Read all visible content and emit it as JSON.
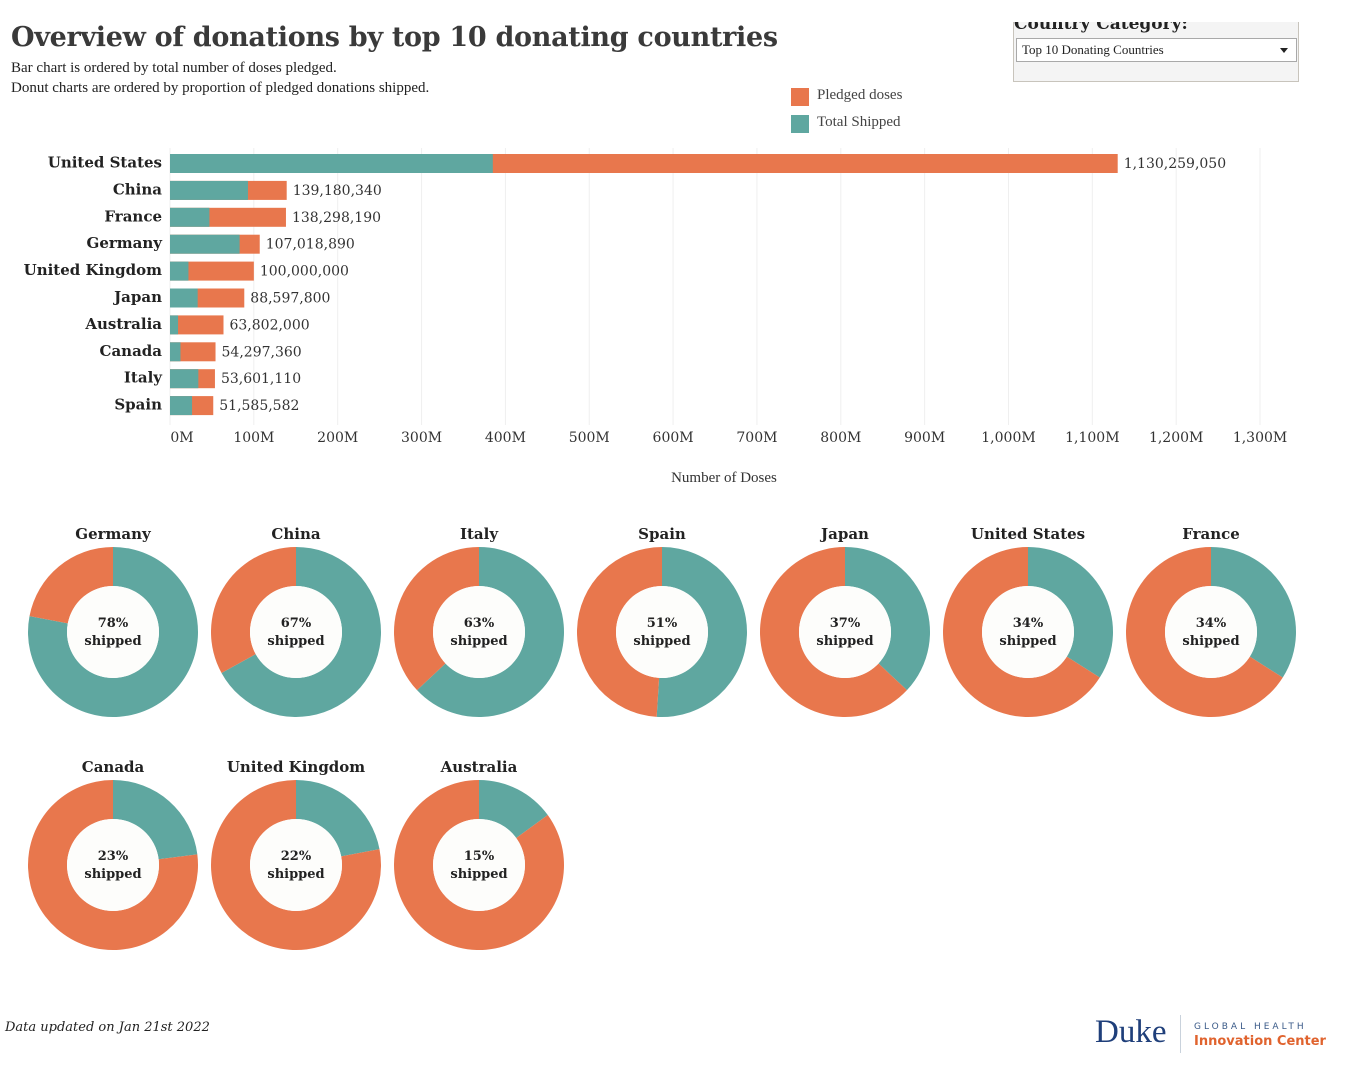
{
  "header": {
    "title": "Overview of donations by top 10 donating countries",
    "subtitle_1": "Bar chart is ordered by total number of doses pledged.",
    "subtitle_2": "Donut charts are ordered by proportion of pledged donations shipped."
  },
  "filter": {
    "label": "Country Category:",
    "selected": "Top 10 Donating Countries"
  },
  "colors": {
    "pledged": "#e8774d",
    "shipped": "#5fa7a0",
    "donut_center": "#fdfdfb",
    "gridline": "#efefef"
  },
  "legend": [
    {
      "label": "Pledged doses",
      "color": "#e8774d"
    },
    {
      "label": "Total Shipped",
      "color": "#5fa7a0"
    }
  ],
  "chart_data": [
    {
      "type": "bar",
      "orientation": "horizontal",
      "stacked": "overlay",
      "title": "",
      "xlabel": "Number of Doses",
      "ylabel": "",
      "xlim": [
        0,
        1300000000
      ],
      "x_ticks": [
        {
          "value": 0,
          "label": "0M"
        },
        {
          "value": 100000000,
          "label": "100M"
        },
        {
          "value": 200000000,
          "label": "200M"
        },
        {
          "value": 300000000,
          "label": "300M"
        },
        {
          "value": 400000000,
          "label": "400M"
        },
        {
          "value": 500000000,
          "label": "500M"
        },
        {
          "value": 600000000,
          "label": "600M"
        },
        {
          "value": 700000000,
          "label": "700M"
        },
        {
          "value": 800000000,
          "label": "800M"
        },
        {
          "value": 900000000,
          "label": "900M"
        },
        {
          "value": 1000000000,
          "label": "1,000M"
        },
        {
          "value": 1100000000,
          "label": "1,100M"
        },
        {
          "value": 1200000000,
          "label": "1,200M"
        },
        {
          "value": 1300000000,
          "label": "1,300M"
        }
      ],
      "grid": true,
      "legend_position": "top-right",
      "categories": [
        "United States",
        "China",
        "France",
        "Germany",
        "United Kingdom",
        "Japan",
        "Australia",
        "Canada",
        "Italy",
        "Spain"
      ],
      "series": [
        {
          "name": "Pledged doses",
          "values": [
            1130259050,
            139180340,
            138298190,
            107018890,
            100000000,
            88597800,
            63802000,
            54297360,
            53601110,
            51585582
          ]
        },
        {
          "name": "Total Shipped",
          "values": [
            385000000,
            93000000,
            47000000,
            83000000,
            22000000,
            33000000,
            9600000,
            12500000,
            33800000,
            26300000
          ]
        }
      ],
      "data_labels": [
        "1,130,259,050",
        "139,180,340",
        "138,298,190",
        "107,018,890",
        "100,000,000",
        "88,597,800",
        "63,802,000",
        "54,297,360",
        "53,601,110",
        "51,585,582"
      ]
    },
    {
      "type": "pie",
      "variant": "donut",
      "title": "",
      "center_suffix": "shipped",
      "items": [
        {
          "country": "Germany",
          "shipped_pct": 78,
          "label": "78%"
        },
        {
          "country": "China",
          "shipped_pct": 67,
          "label": "67%"
        },
        {
          "country": "Italy",
          "shipped_pct": 63,
          "label": "63%"
        },
        {
          "country": "Spain",
          "shipped_pct": 51,
          "label": "51%"
        },
        {
          "country": "Japan",
          "shipped_pct": 37,
          "label": "37%"
        },
        {
          "country": "United States",
          "shipped_pct": 34,
          "label": "34%"
        },
        {
          "country": "France",
          "shipped_pct": 34,
          "label": "34%"
        },
        {
          "country": "Canada",
          "shipped_pct": 23,
          "label": "23%"
        },
        {
          "country": "United Kingdom",
          "shipped_pct": 22,
          "label": "22%"
        },
        {
          "country": "Australia",
          "shipped_pct": 15,
          "label": "15%"
        }
      ]
    }
  ],
  "footer": {
    "note": "Data updated on Jan 21st 2022",
    "logo_main": "Duke",
    "logo_line1": "GLOBAL HEALTH",
    "logo_line2": "Innovation Center"
  }
}
